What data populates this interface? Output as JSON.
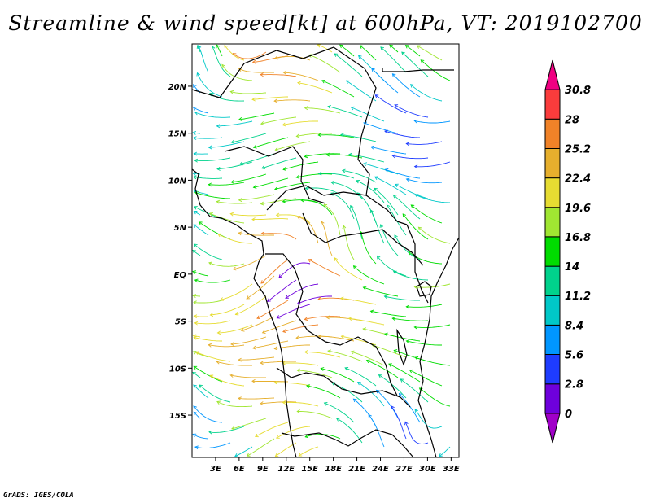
{
  "title": "Streamline & wind speed[kt] at 600hPa, VT: 2019102700",
  "credit": "GrADS: IGES/COLA",
  "map": {
    "lon_range": [
      0,
      34
    ],
    "lat_range": [
      -19.5,
      24.5
    ],
    "lat_ticks": [
      {
        "value": 20,
        "label": "20N"
      },
      {
        "value": 15,
        "label": "15N"
      },
      {
        "value": 10,
        "label": "10N"
      },
      {
        "value": 5,
        "label": "5N"
      },
      {
        "value": 0,
        "label": "EQ"
      },
      {
        "value": -5,
        "label": "5S"
      },
      {
        "value": -10,
        "label": "10S"
      },
      {
        "value": -15,
        "label": "15S"
      }
    ],
    "lon_ticks": [
      {
        "value": 3,
        "label": "3E"
      },
      {
        "value": 6,
        "label": "6E"
      },
      {
        "value": 9,
        "label": "9E"
      },
      {
        "value": 12,
        "label": "12E"
      },
      {
        "value": 15,
        "label": "15E"
      },
      {
        "value": 18,
        "label": "18E"
      },
      {
        "value": 21,
        "label": "21E"
      },
      {
        "value": 24,
        "label": "24E"
      },
      {
        "value": 27,
        "label": "27E"
      },
      {
        "value": 30,
        "label": "30E"
      },
      {
        "value": 33,
        "label": "33E"
      }
    ]
  },
  "colorbar": {
    "levels": [
      "0",
      "2.8",
      "5.6",
      "8.4",
      "11.2",
      "14",
      "16.8",
      "19.6",
      "22.4",
      "25.2",
      "28",
      "30.8"
    ],
    "colors": [
      "#a000c8",
      "#6e00dc",
      "#1e3cff",
      "#0096ff",
      "#00c8c8",
      "#00d28c",
      "#00dc00",
      "#a0e632",
      "#e6dc32",
      "#e6af2d",
      "#f08228",
      "#fa3c3c",
      "#f00082"
    ]
  }
}
